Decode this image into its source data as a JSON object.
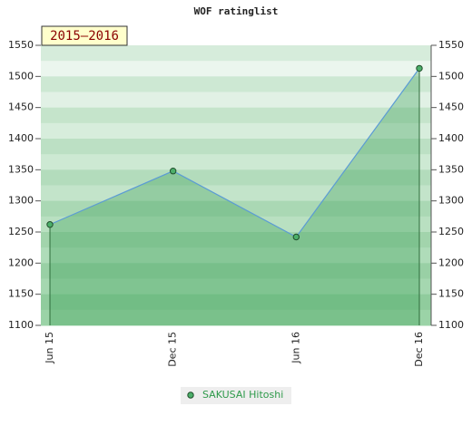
{
  "chart_data": {
    "type": "line",
    "title": "WOF ratinglist",
    "annotation": "2015–2016",
    "categories": [
      "Jun 15",
      "Dec 15",
      "Jun 16",
      "Dec 16"
    ],
    "series": [
      {
        "name": "SAKUSAI Hitoshi",
        "color": "#5b9bd5",
        "values": [
          1262,
          1348,
          1242,
          1513
        ]
      }
    ],
    "ylim": [
      1100,
      1550
    ],
    "yticks": [
      1100,
      1150,
      1200,
      1250,
      1300,
      1350,
      1400,
      1450,
      1500,
      1550
    ],
    "y2lim": [
      1100,
      1550
    ],
    "y2ticks": [
      1100,
      1150,
      1200,
      1250,
      1300,
      1350,
      1400,
      1450,
      1500,
      1550
    ]
  }
}
